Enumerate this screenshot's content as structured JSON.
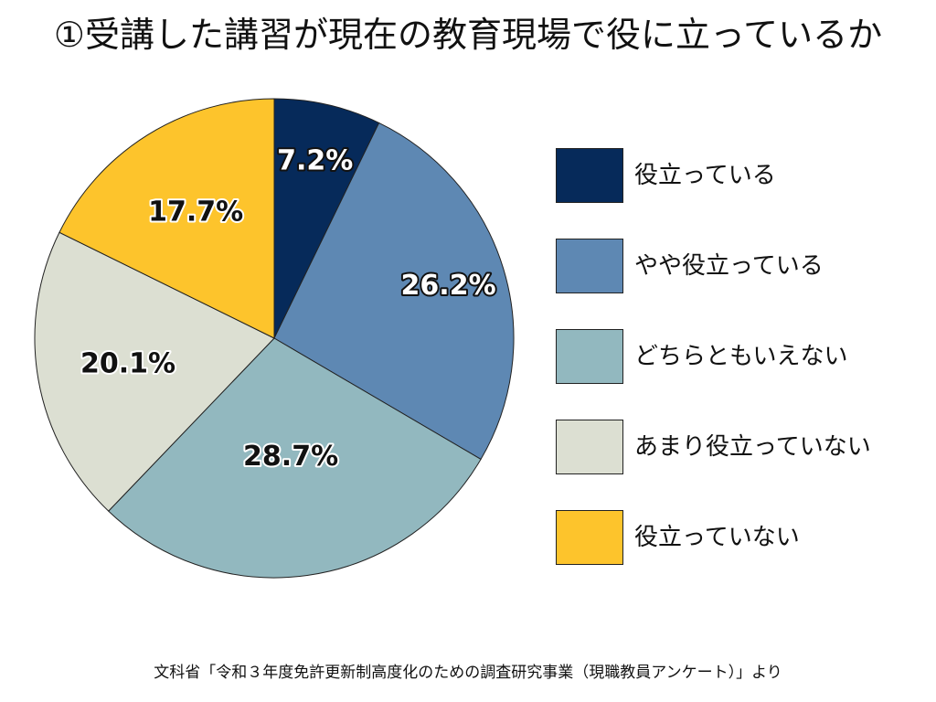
{
  "title": "①受講した講習が現在の教育現場で役に立っているか",
  "source": "文科省「令和３年度免許更新制高度化のための調査研究事業（現職教員アンケート）」より",
  "chart_data": {
    "type": "pie",
    "title": "①受講した講習が現在の教育現場で役に立っているか",
    "start": "12 o'clock, clockwise",
    "slices": [
      {
        "label": "役立っている",
        "value": 7.2,
        "display": "7.2%",
        "color": "#062a5a"
      },
      {
        "label": "やや役立っている",
        "value": 26.2,
        "display": "26.2%",
        "color": "#5e88b3"
      },
      {
        "label": "どちらともいえない",
        "value": 28.7,
        "display": "28.7%",
        "color": "#92b8bf"
      },
      {
        "label": "あまり役立っていない",
        "value": 20.1,
        "display": "20.1%",
        "color": "#dcdfd2"
      },
      {
        "label": "役立っていない",
        "value": 17.7,
        "display": "17.7%",
        "color": "#fdc42c"
      }
    ],
    "legend_position": "right"
  }
}
